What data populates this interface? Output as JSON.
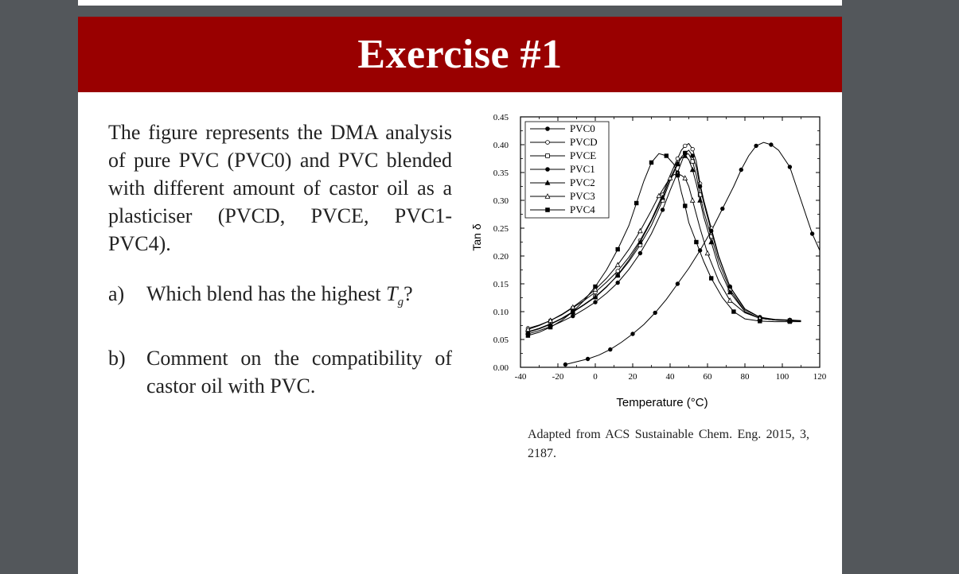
{
  "slide": {
    "title": "Exercise #1",
    "intro": "The figure represents the DMA analysis of pure PVC (PVC0) and PVC blended with different amount of castor oil as a plasticiser (PVCD, PVCE, PVC1-PVC4).",
    "questions": [
      {
        "letter": "a)",
        "text_before": "Which blend has the highest ",
        "symbol": "T",
        "subscript": "g",
        "text_after": "?"
      },
      {
        "letter": "b)",
        "text": "Comment on the compatibility of castor oil with PVC."
      }
    ],
    "caption": "Adapted from ACS Sustainable Chem. Eng. 2015, 3, 2187."
  },
  "chart_data": {
    "type": "line",
    "title": "",
    "xlabel": "Temperature (°C)",
    "ylabel": "Tan δ",
    "xlim": [
      -40,
      120
    ],
    "ylim": [
      0,
      0.45
    ],
    "xticks": [
      -40,
      -20,
      0,
      20,
      40,
      60,
      80,
      100,
      120
    ],
    "yticks": [
      0.0,
      0.05,
      0.1,
      0.15,
      0.2,
      0.25,
      0.3,
      0.35,
      0.4,
      0.45
    ],
    "ytick_labels": [
      "0.00",
      "0.05",
      "0.10",
      "0.15",
      "0.20",
      "0.25",
      "0.30",
      "0.35",
      "0.40",
      "0.45"
    ],
    "legend_position": "top-left",
    "grid": false,
    "series": [
      {
        "name": "PVC0",
        "marker": "filled-circle",
        "points": [
          [
            -16,
            0.005
          ],
          [
            -10,
            0.01
          ],
          [
            -4,
            0.015
          ],
          [
            2,
            0.022
          ],
          [
            8,
            0.032
          ],
          [
            14,
            0.045
          ],
          [
            20,
            0.06
          ],
          [
            26,
            0.077
          ],
          [
            32,
            0.098
          ],
          [
            38,
            0.122
          ],
          [
            44,
            0.15
          ],
          [
            50,
            0.178
          ],
          [
            56,
            0.21
          ],
          [
            62,
            0.245
          ],
          [
            68,
            0.285
          ],
          [
            74,
            0.325
          ],
          [
            78,
            0.355
          ],
          [
            82,
            0.38
          ],
          [
            86,
            0.398
          ],
          [
            90,
            0.404
          ],
          [
            94,
            0.4
          ],
          [
            98,
            0.39
          ],
          [
            104,
            0.36
          ],
          [
            110,
            0.3
          ],
          [
            116,
            0.24
          ],
          [
            120,
            0.21
          ]
        ]
      },
      {
        "name": "PVCD",
        "marker": "open-circle",
        "points": [
          [
            -36,
            0.07
          ],
          [
            -30,
            0.076
          ],
          [
            -24,
            0.084
          ],
          [
            -18,
            0.094
          ],
          [
            -12,
            0.107
          ],
          [
            -6,
            0.12
          ],
          [
            0,
            0.135
          ],
          [
            6,
            0.153
          ],
          [
            12,
            0.173
          ],
          [
            18,
            0.198
          ],
          [
            24,
            0.228
          ],
          [
            30,
            0.265
          ],
          [
            36,
            0.31
          ],
          [
            40,
            0.345
          ],
          [
            44,
            0.375
          ],
          [
            46,
            0.39
          ],
          [
            48,
            0.398
          ],
          [
            50,
            0.402
          ],
          [
            52,
            0.392
          ],
          [
            54,
            0.37
          ],
          [
            56,
            0.33
          ],
          [
            58,
            0.3
          ],
          [
            62,
            0.25
          ],
          [
            66,
            0.2
          ],
          [
            72,
            0.145
          ],
          [
            80,
            0.105
          ],
          [
            88,
            0.09
          ],
          [
            96,
            0.085
          ],
          [
            104,
            0.085
          ],
          [
            110,
            0.083
          ]
        ]
      },
      {
        "name": "PVCE",
        "marker": "open-square",
        "points": [
          [
            -36,
            0.064
          ],
          [
            -30,
            0.07
          ],
          [
            -24,
            0.078
          ],
          [
            -18,
            0.088
          ],
          [
            -12,
            0.1
          ],
          [
            -6,
            0.113
          ],
          [
            0,
            0.127
          ],
          [
            6,
            0.145
          ],
          [
            12,
            0.165
          ],
          [
            18,
            0.19
          ],
          [
            24,
            0.22
          ],
          [
            30,
            0.255
          ],
          [
            36,
            0.3
          ],
          [
            40,
            0.335
          ],
          [
            44,
            0.365
          ],
          [
            46,
            0.378
          ],
          [
            48,
            0.385
          ],
          [
            50,
            0.383
          ],
          [
            52,
            0.37
          ],
          [
            54,
            0.345
          ],
          [
            56,
            0.31
          ],
          [
            58,
            0.28
          ],
          [
            62,
            0.235
          ],
          [
            66,
            0.19
          ],
          [
            72,
            0.14
          ],
          [
            80,
            0.1
          ],
          [
            88,
            0.088
          ],
          [
            96,
            0.085
          ],
          [
            104,
            0.084
          ],
          [
            110,
            0.083
          ]
        ]
      },
      {
        "name": "PVC1",
        "marker": "filled-circle",
        "points": [
          [
            -36,
            0.06
          ],
          [
            -30,
            0.066
          ],
          [
            -24,
            0.073
          ],
          [
            -18,
            0.082
          ],
          [
            -12,
            0.092
          ],
          [
            -6,
            0.104
          ],
          [
            0,
            0.117
          ],
          [
            6,
            0.133
          ],
          [
            12,
            0.152
          ],
          [
            18,
            0.176
          ],
          [
            24,
            0.205
          ],
          [
            30,
            0.24
          ],
          [
            36,
            0.283
          ],
          [
            40,
            0.318
          ],
          [
            44,
            0.35
          ],
          [
            46,
            0.368
          ],
          [
            48,
            0.385
          ],
          [
            50,
            0.39
          ],
          [
            52,
            0.38
          ],
          [
            54,
            0.36
          ],
          [
            56,
            0.325
          ],
          [
            58,
            0.295
          ],
          [
            62,
            0.245
          ],
          [
            66,
            0.198
          ],
          [
            72,
            0.145
          ],
          [
            80,
            0.103
          ],
          [
            88,
            0.09
          ],
          [
            96,
            0.086
          ],
          [
            104,
            0.085
          ],
          [
            110,
            0.084
          ]
        ]
      },
      {
        "name": "PVC2",
        "marker": "filled-triangle",
        "points": [
          [
            -36,
            0.063
          ],
          [
            -30,
            0.069
          ],
          [
            -24,
            0.077
          ],
          [
            -18,
            0.087
          ],
          [
            -12,
            0.099
          ],
          [
            -6,
            0.112
          ],
          [
            0,
            0.126
          ],
          [
            6,
            0.144
          ],
          [
            12,
            0.166
          ],
          [
            18,
            0.193
          ],
          [
            24,
            0.225
          ],
          [
            30,
            0.263
          ],
          [
            36,
            0.305
          ],
          [
            40,
            0.34
          ],
          [
            44,
            0.366
          ],
          [
            46,
            0.376
          ],
          [
            48,
            0.38
          ],
          [
            50,
            0.373
          ],
          [
            52,
            0.355
          ],
          [
            54,
            0.33
          ],
          [
            56,
            0.3
          ],
          [
            58,
            0.27
          ],
          [
            62,
            0.225
          ],
          [
            66,
            0.18
          ],
          [
            72,
            0.135
          ],
          [
            80,
            0.1
          ],
          [
            88,
            0.088
          ],
          [
            96,
            0.085
          ],
          [
            104,
            0.084
          ],
          [
            110,
            0.083
          ]
        ]
      },
      {
        "name": "PVC3",
        "marker": "open-triangle",
        "points": [
          [
            -36,
            0.068
          ],
          [
            -30,
            0.075
          ],
          [
            -24,
            0.084
          ],
          [
            -18,
            0.095
          ],
          [
            -12,
            0.108
          ],
          [
            -6,
            0.123
          ],
          [
            0,
            0.14
          ],
          [
            6,
            0.16
          ],
          [
            12,
            0.184
          ],
          [
            18,
            0.212
          ],
          [
            24,
            0.245
          ],
          [
            30,
            0.282
          ],
          [
            34,
            0.308
          ],
          [
            38,
            0.33
          ],
          [
            40,
            0.34
          ],
          [
            42,
            0.346
          ],
          [
            44,
            0.348
          ],
          [
            46,
            0.345
          ],
          [
            48,
            0.34
          ],
          [
            50,
            0.325
          ],
          [
            52,
            0.3
          ],
          [
            56,
            0.25
          ],
          [
            60,
            0.205
          ],
          [
            66,
            0.155
          ],
          [
            72,
            0.12
          ],
          [
            80,
            0.098
          ],
          [
            88,
            0.088
          ],
          [
            96,
            0.085
          ],
          [
            104,
            0.084
          ],
          [
            110,
            0.083
          ]
        ]
      },
      {
        "name": "PVC4",
        "marker": "filled-square",
        "points": [
          [
            -36,
            0.057
          ],
          [
            -30,
            0.063
          ],
          [
            -24,
            0.072
          ],
          [
            -18,
            0.084
          ],
          [
            -12,
            0.1
          ],
          [
            -6,
            0.12
          ],
          [
            0,
            0.145
          ],
          [
            6,
            0.175
          ],
          [
            12,
            0.212
          ],
          [
            18,
            0.255
          ],
          [
            22,
            0.295
          ],
          [
            26,
            0.335
          ],
          [
            30,
            0.368
          ],
          [
            34,
            0.384
          ],
          [
            38,
            0.38
          ],
          [
            42,
            0.365
          ],
          [
            44,
            0.345
          ],
          [
            46,
            0.315
          ],
          [
            48,
            0.29
          ],
          [
            50,
            0.26
          ],
          [
            54,
            0.225
          ],
          [
            58,
            0.19
          ],
          [
            62,
            0.16
          ],
          [
            68,
            0.125
          ],
          [
            74,
            0.1
          ],
          [
            80,
            0.087
          ],
          [
            88,
            0.083
          ],
          [
            96,
            0.082
          ],
          [
            104,
            0.082
          ],
          [
            110,
            0.082
          ]
        ]
      }
    ]
  }
}
